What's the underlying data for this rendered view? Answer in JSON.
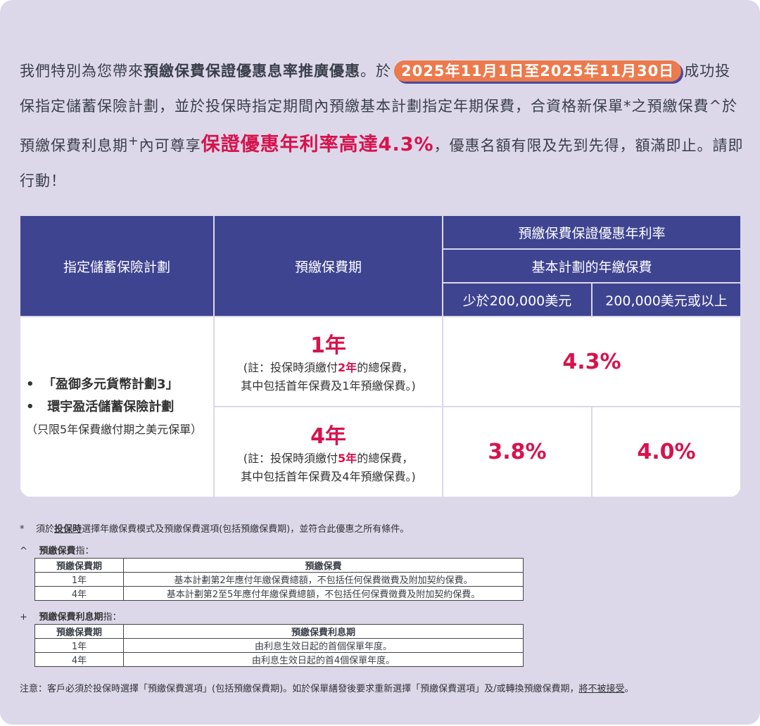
{
  "intro": {
    "p1": "我們特別為您帶來",
    "p1_bold": "預繳保費保證優惠息率推廣優惠",
    "p2": "。於",
    "date_range": "2025年11月1日至2025年11月30日",
    "p3": "成功投保指定儲蓄保險計劃，並於投保時指定期間內預繳基本計劃指定年期保費，合資格新保單*之預繳保費^於預繳保費利息期",
    "plus": "+",
    "p4": "內可尊享",
    "highlight": "保證優惠年利率高達4.3%",
    "p5": "，優惠名額有限及先到先得，額滿即止。請即行動！"
  },
  "colors": {
    "header": "#3f4491",
    "accent": "#d8124c",
    "pill": "#ec7a4c",
    "background": "#dcd8ea"
  },
  "table": {
    "headers": {
      "plan": "指定儲蓄保險計劃",
      "period": "預繳保費期",
      "rate_title": "預繳保費保證優惠年利率",
      "premium_title": "基本計劃的年繳保費",
      "tier1": "少於200,000美元",
      "tier2": "200,000美元或以上"
    },
    "plans": [
      "「盈御多元貨幣計劃3」",
      "環宇盈活儲蓄保險計劃"
    ],
    "plans_note": "（只限5年保費繳付期之美元保單）",
    "rows": [
      {
        "period": "1年",
        "note_a": "(註：投保時須繳付",
        "note_years": "2年",
        "note_b": "的總保費，",
        "note_c": "其中包括首年保費及1年預繳保費。)",
        "rate": "4.3%"
      },
      {
        "period": "4年",
        "note_a": "(註：投保時須繳付",
        "note_years": "5年",
        "note_b": "的總保費，",
        "note_c": "其中包括首年保費及4年預繳保費。)",
        "rate_tier1": "3.8%",
        "rate_tier2": "4.0%"
      }
    ]
  },
  "footnotes": {
    "star_mark": "*",
    "star_a": "須於",
    "star_u": "投保時",
    "star_b": "選擇年繳保費模式及預繳保費選項(包括預繳保費期)，並符合此優惠之所有條件。",
    "caret_mark": "^",
    "caret_bold": "預繳保費",
    "caret_rest": "指：",
    "t1": {
      "h1": "預繳保費期",
      "h2": "預繳保費",
      "rows": [
        [
          "1年",
          "基本計劃第2年應付年繳保費總額，不包括任何保費徵費及附加契約保費。"
        ],
        [
          "4年",
          "基本計劃第2至5年應付年繳保費總額，不包括任何保費徵費及附加契約保費。"
        ]
      ]
    },
    "plus_mark": "+",
    "plus_bold": "預繳保費利息期",
    "plus_rest": "指：",
    "t2": {
      "h1": "預繳保費期",
      "h2": "預繳保費利息期",
      "rows": [
        [
          "1年",
          "由利息生效日起的首個保單年度。"
        ],
        [
          "4年",
          "由利息生效日起的首4個保單年度。"
        ]
      ]
    },
    "notice_a": "注意：客戶必須於投保時選擇「預繳保費選項」(包括預繳保費期)。如於保單繕發後要求重新選擇「預繳保費選項」及/或轉換預繳保費期，",
    "notice_u": "將不被接受",
    "notice_b": "。"
  }
}
